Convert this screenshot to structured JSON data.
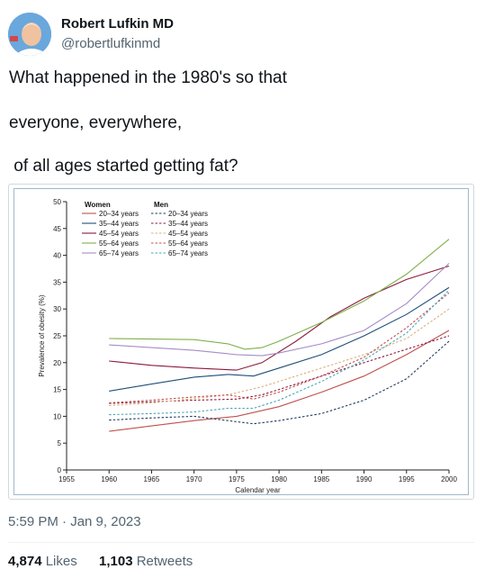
{
  "tweet": {
    "author_name": "Robert Lufkin MD",
    "author_handle": "@robertlufkinmd",
    "lines": [
      "What happened in the 1980's so that",
      "everyone, everywhere,",
      " of all ages started getting fat?"
    ],
    "timestamp": "5:59 PM · Jan 9, 2023",
    "likes_count": "4,874",
    "likes_label": "Likes",
    "retweets_count": "1,103",
    "retweets_label": "Retweets"
  },
  "chart_data": {
    "type": "line",
    "xlabel": "Calendar year",
    "ylabel": "Prevalence of obesity (%)",
    "xlim": [
      1955,
      2000
    ],
    "ylim": [
      0,
      50
    ],
    "x_ticks": [
      "1955",
      "1960",
      "1965",
      "1970",
      "1975",
      "1980",
      "1985",
      "1990",
      "1995",
      "2000"
    ],
    "y_ticks": [
      "0",
      "5",
      "10",
      "15",
      "20",
      "25",
      "30",
      "35",
      "40",
      "45",
      "50"
    ],
    "legend_titles": {
      "women": "Women",
      "men": "Men"
    },
    "series": [
      {
        "name": "20–34 years",
        "group": "women",
        "dashed": false,
        "color": "#c0504d",
        "points": [
          [
            1960,
            7.2
          ],
          [
            1965,
            8.2
          ],
          [
            1970,
            9.2
          ],
          [
            1975,
            10.0
          ],
          [
            1980,
            11.8
          ],
          [
            1985,
            14.5
          ],
          [
            1990,
            17.5
          ],
          [
            1995,
            21.5
          ],
          [
            2000,
            26.0
          ]
        ]
      },
      {
        "name": "35–44 years",
        "group": "women",
        "dashed": false,
        "color": "#1f4e79",
        "points": [
          [
            1960,
            14.7
          ],
          [
            1965,
            16.0
          ],
          [
            1970,
            17.3
          ],
          [
            1974,
            17.8
          ],
          [
            1977,
            17.5
          ],
          [
            1980,
            19.0
          ],
          [
            1985,
            21.5
          ],
          [
            1990,
            25.0
          ],
          [
            1995,
            29.0
          ],
          [
            2000,
            34.0
          ]
        ]
      },
      {
        "name": "45–54 years",
        "group": "women",
        "dashed": false,
        "color": "#8b1a3a",
        "points": [
          [
            1960,
            20.3
          ],
          [
            1965,
            19.5
          ],
          [
            1970,
            19.0
          ],
          [
            1975,
            18.6
          ],
          [
            1978,
            20.0
          ],
          [
            1982,
            24.0
          ],
          [
            1986,
            28.5
          ],
          [
            1990,
            32.0
          ],
          [
            1995,
            35.5
          ],
          [
            2000,
            38.0
          ]
        ]
      },
      {
        "name": "55–64 years",
        "group": "women",
        "dashed": false,
        "color": "#7fb04a",
        "points": [
          [
            1960,
            24.5
          ],
          [
            1965,
            24.4
          ],
          [
            1970,
            24.3
          ],
          [
            1974,
            23.5
          ],
          [
            1976,
            22.5
          ],
          [
            1978,
            22.8
          ],
          [
            1980,
            24.0
          ],
          [
            1985,
            27.5
          ],
          [
            1990,
            31.5
          ],
          [
            1995,
            36.5
          ],
          [
            2000,
            43.0
          ]
        ]
      },
      {
        "name": "65–74 years",
        "group": "women",
        "dashed": false,
        "color": "#a58cc6",
        "points": [
          [
            1960,
            23.3
          ],
          [
            1965,
            22.8
          ],
          [
            1970,
            22.3
          ],
          [
            1975,
            21.5
          ],
          [
            1978,
            21.3
          ],
          [
            1980,
            21.8
          ],
          [
            1985,
            23.5
          ],
          [
            1990,
            26.0
          ],
          [
            1995,
            31.0
          ],
          [
            2000,
            38.5
          ]
        ]
      },
      {
        "name": "20–34 years",
        "group": "men",
        "dashed": true,
        "color": "#1f3a60",
        "points": [
          [
            1960,
            9.3
          ],
          [
            1965,
            9.7
          ],
          [
            1970,
            10.0
          ],
          [
            1975,
            9.0
          ],
          [
            1977,
            8.6
          ],
          [
            1980,
            9.2
          ],
          [
            1985,
            10.5
          ],
          [
            1990,
            13.0
          ],
          [
            1995,
            17.0
          ],
          [
            2000,
            24.0
          ]
        ]
      },
      {
        "name": "35–44 years",
        "group": "men",
        "dashed": true,
        "color": "#8b1a3a",
        "points": [
          [
            1960,
            12.4
          ],
          [
            1965,
            12.7
          ],
          [
            1970,
            13.0
          ],
          [
            1975,
            13.2
          ],
          [
            1978,
            14.0
          ],
          [
            1982,
            16.0
          ],
          [
            1986,
            18.0
          ],
          [
            1990,
            20.0
          ],
          [
            1995,
            22.5
          ],
          [
            2000,
            25.0
          ]
        ]
      },
      {
        "name": "45–54 years",
        "group": "men",
        "dashed": true,
        "color": "#d9b27c",
        "points": [
          [
            1960,
            12.0
          ],
          [
            1965,
            12.5
          ],
          [
            1970,
            13.3
          ],
          [
            1974,
            14.0
          ],
          [
            1978,
            15.5
          ],
          [
            1982,
            17.5
          ],
          [
            1986,
            19.5
          ],
          [
            1990,
            21.5
          ],
          [
            1995,
            24.5
          ],
          [
            2000,
            30.0
          ]
        ]
      },
      {
        "name": "55–64 years",
        "group": "men",
        "dashed": true,
        "color": "#c0504d",
        "points": [
          [
            1960,
            12.5
          ],
          [
            1965,
            13.0
          ],
          [
            1970,
            13.6
          ],
          [
            1974,
            14.0
          ],
          [
            1977,
            13.2
          ],
          [
            1980,
            14.5
          ],
          [
            1985,
            17.5
          ],
          [
            1990,
            21.0
          ],
          [
            1995,
            26.5
          ],
          [
            2000,
            33.0
          ]
        ]
      },
      {
        "name": "65–74 years",
        "group": "men",
        "dashed": true,
        "color": "#4aa5b8",
        "points": [
          [
            1960,
            10.3
          ],
          [
            1965,
            10.5
          ],
          [
            1970,
            10.8
          ],
          [
            1974,
            11.5
          ],
          [
            1977,
            11.5
          ],
          [
            1980,
            13.0
          ],
          [
            1985,
            16.5
          ],
          [
            1990,
            20.5
          ],
          [
            1995,
            25.5
          ],
          [
            2000,
            33.5
          ]
        ]
      }
    ]
  }
}
